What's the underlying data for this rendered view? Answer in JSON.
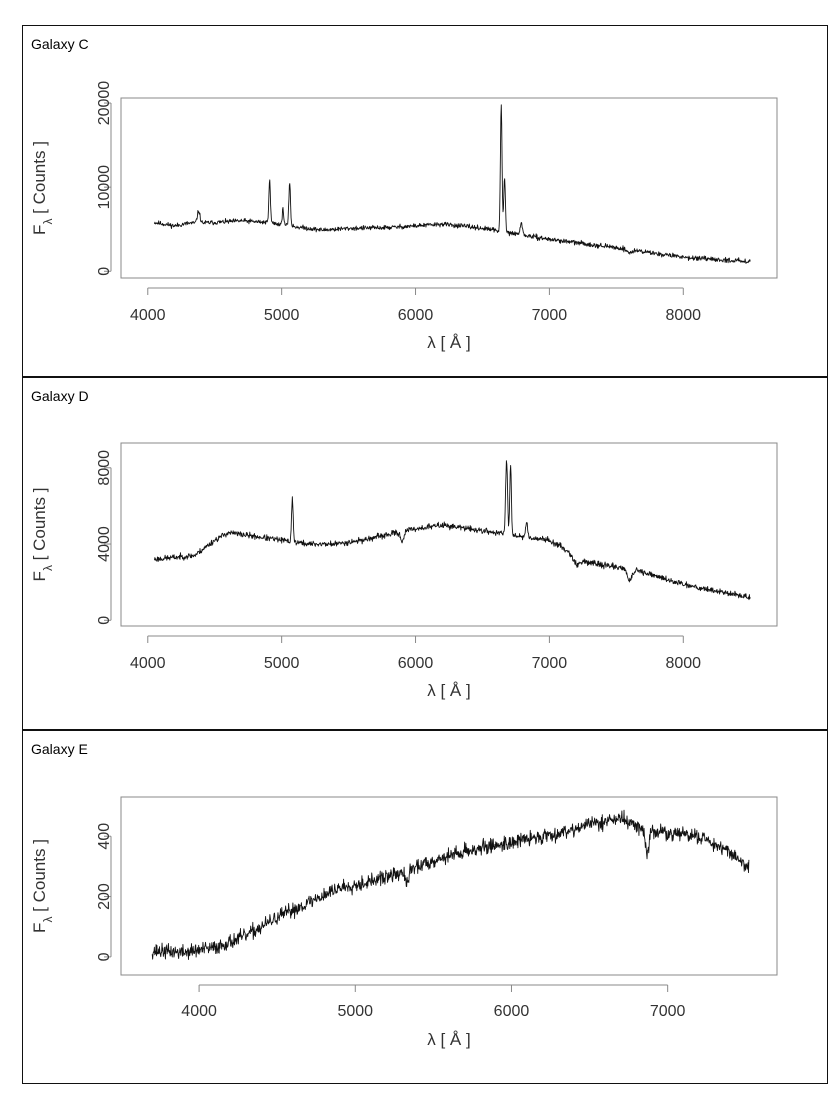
{
  "chart_data": [
    {
      "type": "line",
      "title": "Galaxy C",
      "xlabel": "λ [ Å ]",
      "ylabel_main": "F",
      "ylabel_sub": "λ",
      "ylabel_rest": " [ Counts ]",
      "xlim": [
        3800,
        8700
      ],
      "ylim": [
        -800,
        20600
      ],
      "xticks": [
        4000,
        5000,
        6000,
        7000,
        8000
      ],
      "yticks": [
        0,
        10000,
        20000
      ],
      "noise": 250,
      "anchors": [
        [
          4050,
          5800
        ],
        [
          4200,
          5400
        ],
        [
          4300,
          5700
        ],
        [
          4500,
          5800
        ],
        [
          4700,
          6000
        ],
        [
          4900,
          5800
        ],
        [
          5100,
          5300
        ],
        [
          5300,
          4900
        ],
        [
          5500,
          5100
        ],
        [
          5800,
          5200
        ],
        [
          6000,
          5400
        ],
        [
          6200,
          5600
        ],
        [
          6400,
          5300
        ],
        [
          6550,
          5000
        ],
        [
          6650,
          4700
        ],
        [
          6800,
          4300
        ],
        [
          7000,
          3800
        ],
        [
          7200,
          3400
        ],
        [
          7400,
          3000
        ],
        [
          7600,
          2600
        ],
        [
          7800,
          2100
        ],
        [
          8000,
          1700
        ],
        [
          8200,
          1400
        ],
        [
          8500,
          1200
        ]
      ],
      "lines": [
        [
          4380,
          1400,
          10
        ],
        [
          4910,
          5000,
          6
        ],
        [
          5010,
          1800,
          6
        ],
        [
          5060,
          5200,
          6
        ],
        [
          6640,
          15000,
          6
        ],
        [
          6665,
          6500,
          6
        ],
        [
          6790,
          1500,
          8
        ]
      ],
      "absorptions": [
        [
          7600,
          -400,
          20
        ]
      ],
      "seed": 11
    },
    {
      "type": "line",
      "title": "Galaxy D",
      "xlabel": "λ [ Å ]",
      "ylabel_main": "F",
      "ylabel_sub": "λ",
      "ylabel_rest": " [ Counts ]",
      "xlim": [
        3800,
        8700
      ],
      "ylim": [
        -300,
        9300
      ],
      "xticks": [
        4000,
        5000,
        6000,
        7000,
        8000
      ],
      "yticks": [
        0,
        4000,
        8000
      ],
      "noise": 140,
      "anchors": [
        [
          4050,
          3200
        ],
        [
          4200,
          3300
        ],
        [
          4350,
          3400
        ],
        [
          4500,
          4200
        ],
        [
          4600,
          4600
        ],
        [
          4800,
          4400
        ],
        [
          5000,
          4200
        ],
        [
          5200,
          4000
        ],
        [
          5400,
          4000
        ],
        [
          5600,
          4200
        ],
        [
          5800,
          4500
        ],
        [
          6000,
          4800
        ],
        [
          6200,
          5000
        ],
        [
          6400,
          4800
        ],
        [
          6600,
          4600
        ],
        [
          6800,
          4400
        ],
        [
          7000,
          4200
        ],
        [
          7150,
          3600
        ],
        [
          7250,
          3100
        ],
        [
          7400,
          2900
        ],
        [
          7600,
          2700
        ],
        [
          7800,
          2300
        ],
        [
          8000,
          1900
        ],
        [
          8200,
          1600
        ],
        [
          8500,
          1200
        ]
      ],
      "lines": [
        [
          5080,
          2300,
          6
        ],
        [
          6680,
          3900,
          7
        ],
        [
          6710,
          3700,
          6
        ],
        [
          6830,
          800,
          7
        ]
      ],
      "absorptions": [
        [
          5900,
          -500,
          12
        ],
        [
          7200,
          -400,
          25
        ],
        [
          7600,
          -600,
          18
        ]
      ],
      "seed": 23
    },
    {
      "type": "line",
      "title": "Galaxy E",
      "xlabel": "λ [ Å ]",
      "ylabel_main": "F",
      "ylabel_sub": "λ",
      "ylabel_rest": " [ Counts ]",
      "xlim": [
        3500,
        7700
      ],
      "ylim": [
        -60,
        530
      ],
      "xticks": [
        4000,
        5000,
        6000,
        7000
      ],
      "yticks": [
        0,
        200,
        400
      ],
      "noise": 22,
      "anchors": [
        [
          3700,
          20
        ],
        [
          3900,
          15
        ],
        [
          4100,
          30
        ],
        [
          4300,
          70
        ],
        [
          4500,
          130
        ],
        [
          4700,
          180
        ],
        [
          4900,
          230
        ],
        [
          5100,
          250
        ],
        [
          5300,
          280
        ],
        [
          5500,
          320
        ],
        [
          5700,
          350
        ],
        [
          5900,
          370
        ],
        [
          6100,
          390
        ],
        [
          6300,
          410
        ],
        [
          6500,
          440
        ],
        [
          6700,
          460
        ],
        [
          6850,
          420
        ],
        [
          7000,
          410
        ],
        [
          7200,
          400
        ],
        [
          7400,
          350
        ],
        [
          7520,
          290
        ]
      ],
      "lines": [],
      "absorptions": [
        [
          5330,
          -50,
          10
        ],
        [
          6870,
          -70,
          12
        ]
      ],
      "seed": 37
    }
  ]
}
